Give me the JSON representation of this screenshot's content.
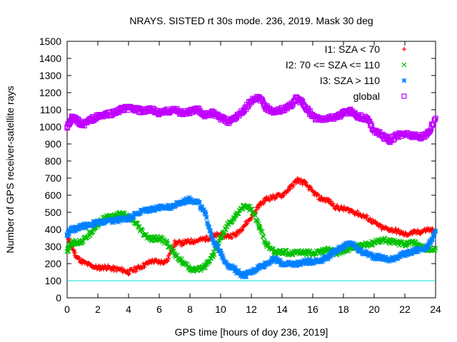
{
  "chart_data": {
    "type": "scatter",
    "title": "NRAYS. SISTED rt 30s mode. 236, 2019. Mask 30 deg",
    "xlabel": "GPS time [hours of doy 236, 2019]",
    "ylabel": "Number of GPS receiver-satellite rays",
    "xlim": [
      0,
      24
    ],
    "ylim": [
      0,
      1500
    ],
    "xticks": [
      0,
      2,
      4,
      6,
      8,
      10,
      12,
      14,
      16,
      18,
      20,
      22,
      24
    ],
    "yticks": [
      0,
      100,
      200,
      300,
      400,
      500,
      600,
      700,
      800,
      900,
      1000,
      1100,
      1200,
      1300,
      1400,
      1500
    ],
    "legend_position": "top-right",
    "reference_line": {
      "y": 100,
      "color": "#00e0e0"
    },
    "series": [
      {
        "name": "I1: SZA < 70",
        "marker": "+",
        "color": "#ff0000",
        "x": [
          0,
          0.3,
          0.6,
          1,
          1.5,
          2,
          2.5,
          3,
          3.5,
          4,
          4.5,
          5,
          5.5,
          6,
          6.5,
          7,
          7.5,
          8,
          8.5,
          9,
          9.5,
          10,
          10.5,
          11,
          11.5,
          12,
          12.5,
          13,
          13.5,
          14,
          14.5,
          15,
          15.5,
          16,
          16.5,
          17,
          17.5,
          18,
          18.5,
          19,
          19.5,
          20,
          20.5,
          21,
          21.5,
          22,
          22.5,
          23,
          23.5,
          24
        ],
        "y": [
          370,
          300,
          240,
          210,
          190,
          175,
          180,
          170,
          165,
          150,
          170,
          190,
          215,
          210,
          215,
          320,
          320,
          330,
          335,
          345,
          360,
          370,
          360,
          370,
          420,
          470,
          540,
          580,
          590,
          600,
          640,
          690,
          670,
          620,
          580,
          570,
          530,
          520,
          510,
          490,
          470,
          440,
          410,
          400,
          390,
          370,
          380,
          385,
          400,
          390
        ]
      },
      {
        "name": "I2: 70 <= SZA <= 110",
        "marker": "x",
        "color": "#00c000",
        "x": [
          0,
          0.3,
          0.6,
          1,
          1.5,
          2,
          2.5,
          3,
          3.5,
          4,
          4.5,
          5,
          5.5,
          6,
          6.5,
          7,
          7.5,
          8,
          8.5,
          9,
          9.5,
          10,
          10.5,
          11,
          11.5,
          12,
          12.5,
          13,
          13.5,
          14,
          14.5,
          15,
          15.5,
          16,
          16.5,
          17,
          17.5,
          18,
          18.5,
          19,
          19.5,
          20,
          20.5,
          21,
          21.5,
          22,
          22.5,
          23,
          23.5,
          24
        ],
        "y": [
          270,
          320,
          325,
          330,
          380,
          430,
          470,
          480,
          490,
          470,
          430,
          370,
          340,
          350,
          320,
          260,
          210,
          170,
          160,
          190,
          250,
          350,
          430,
          480,
          540,
          520,
          420,
          310,
          265,
          270,
          260,
          270,
          265,
          260,
          270,
          280,
          265,
          270,
          290,
          305,
          310,
          320,
          340,
          330,
          320,
          315,
          330,
          300,
          280,
          290
        ]
      },
      {
        "name": "I3: SZA > 110",
        "marker": "*",
        "color": "#0080ff",
        "x": [
          0,
          0.3,
          0.6,
          1,
          1.5,
          2,
          2.5,
          3,
          3.5,
          4,
          4.5,
          5,
          5.5,
          6,
          6.5,
          7,
          7.5,
          8,
          8.5,
          9,
          9.5,
          10,
          10.5,
          11,
          11.5,
          12,
          12.5,
          13,
          13.5,
          14,
          14.5,
          15,
          15.5,
          16,
          16.5,
          17,
          17.5,
          18,
          18.5,
          19,
          19.5,
          20,
          20.5,
          21,
          21.5,
          22,
          22.5,
          23,
          23.5,
          24
        ],
        "y": [
          370,
          400,
          405,
          420,
          430,
          440,
          445,
          450,
          460,
          465,
          490,
          510,
          520,
          525,
          530,
          540,
          560,
          575,
          560,
          490,
          340,
          260,
          190,
          160,
          130,
          150,
          180,
          200,
          230,
          200,
          195,
          200,
          210,
          215,
          220,
          240,
          280,
          300,
          320,
          280,
          260,
          240,
          235,
          220,
          240,
          255,
          270,
          285,
          300,
          390
        ]
      },
      {
        "name": "global",
        "marker": "square",
        "color": "#c000ff",
        "x": [
          0,
          0.3,
          0.6,
          1,
          1.5,
          2,
          2.5,
          3,
          3.5,
          4,
          4.5,
          5,
          5.5,
          6,
          6.5,
          7,
          7.5,
          8,
          8.5,
          9,
          9.5,
          10,
          10.5,
          11,
          11.5,
          12,
          12.5,
          13,
          13.5,
          14,
          14.5,
          15,
          15.5,
          16,
          16.5,
          17,
          17.5,
          18,
          18.5,
          19,
          19.5,
          20,
          20.5,
          21,
          21.5,
          22,
          22.5,
          23,
          23.5,
          24
        ],
        "y": [
          1000,
          1050,
          1040,
          1010,
          1040,
          1060,
          1070,
          1080,
          1100,
          1110,
          1100,
          1090,
          1100,
          1080,
          1090,
          1100,
          1080,
          1090,
          1100,
          1070,
          1080,
          1050,
          1030,
          1060,
          1100,
          1150,
          1170,
          1110,
          1090,
          1100,
          1120,
          1170,
          1120,
          1060,
          1040,
          1050,
          1060,
          1080,
          1090,
          1060,
          1050,
          980,
          950,
          920,
          950,
          960,
          950,
          940,
          960,
          1050
        ]
      }
    ]
  }
}
